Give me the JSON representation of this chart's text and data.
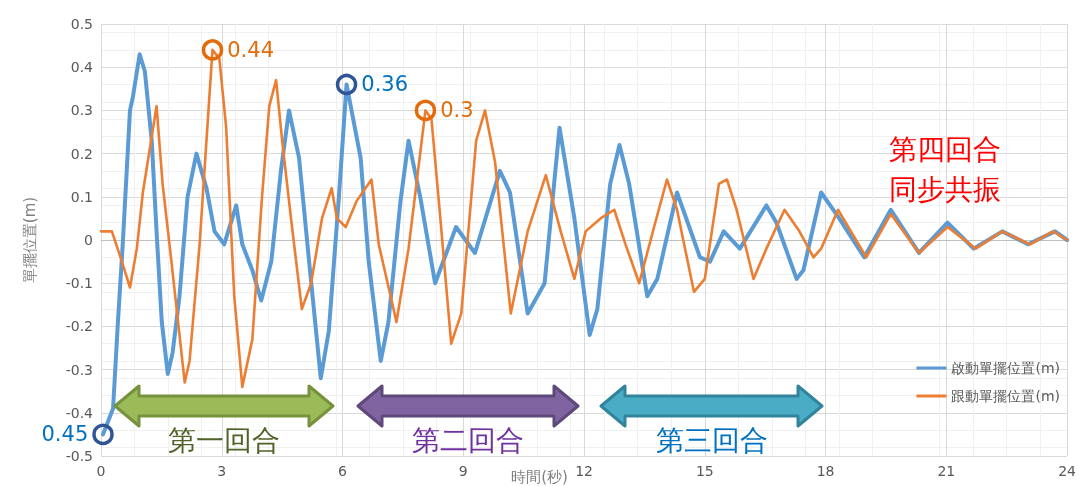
{
  "chart_data": {
    "type": "line",
    "xlabel": "時間(秒)",
    "ylabel": "單擺位置(m)",
    "xlim": [
      0,
      24
    ],
    "xticks": [
      0,
      3,
      6,
      9,
      12,
      15,
      18,
      21,
      24
    ],
    "ylim": [
      -0.5,
      0.5
    ],
    "yticks": [
      -0.5,
      -0.4,
      -0.3,
      -0.2,
      -0.1,
      0,
      0.1,
      0.2,
      0.3,
      0.4,
      0.5
    ],
    "grid": true,
    "legend": "bottom right",
    "marker": "none",
    "line_style": "solid",
    "series": [
      {
        "name": "啟動單擺位置(m)",
        "color": "#5b9bd5",
        "x": [
          0.05,
          0.3,
          0.42,
          0.54,
          0.72,
          0.79,
          0.96,
          1.09,
          1.26,
          1.38,
          1.51,
          1.66,
          1.78,
          1.95,
          2.15,
          2.37,
          2.62,
          2.82,
          3.06,
          3.36,
          3.51,
          3.76,
          3.98,
          4.23,
          4.47,
          4.67,
          4.92,
          5.17,
          5.46,
          5.66,
          5.91,
          6.1,
          6.45,
          6.65,
          6.95,
          7.14,
          7.44,
          7.64,
          7.93,
          8.3,
          8.82,
          9.29,
          9.91,
          10.16,
          10.6,
          11.02,
          11.39,
          11.76,
          12.14,
          12.33,
          12.65,
          12.88,
          13.12,
          13.57,
          13.82,
          14.31,
          14.88,
          15.13,
          15.47,
          15.87,
          16.53,
          16.78,
          17.28,
          17.45,
          17.89,
          18.34,
          18.96,
          19.62,
          20.32,
          21.03,
          21.68,
          22.39,
          23.03,
          23.7,
          24
        ],
        "values": [
          -0.45,
          -0.39,
          -0.19,
          -0.01,
          0.3,
          0.33,
          0.43,
          0.39,
          0.23,
          0.02,
          -0.19,
          -0.31,
          -0.26,
          -0.13,
          0.1,
          0.2,
          0.12,
          0.02,
          -0.01,
          0.08,
          -0.01,
          -0.07,
          -0.14,
          -0.05,
          0.16,
          0.3,
          0.19,
          -0.05,
          -0.32,
          -0.21,
          0.1,
          0.36,
          0.19,
          -0.05,
          -0.28,
          -0.19,
          0.09,
          0.23,
          0.1,
          -0.1,
          0.03,
          -0.03,
          0.16,
          0.11,
          -0.17,
          -0.1,
          0.26,
          0.05,
          -0.22,
          -0.16,
          0.13,
          0.22,
          0.13,
          -0.13,
          -0.09,
          0.11,
          -0.04,
          -0.05,
          0.02,
          -0.02,
          0.08,
          0.04,
          -0.09,
          -0.07,
          0.11,
          0.05,
          -0.04,
          0.07,
          -0.03,
          0.04,
          -0.02,
          0.02,
          -0.01,
          0.02,
          0
        ]
      },
      {
        "name": "跟動單擺位置(m)",
        "color": "#ed7d31",
        "x": [
          0,
          0.27,
          0.52,
          0.72,
          0.89,
          1.04,
          1.38,
          1.53,
          1.75,
          2.08,
          2.2,
          2.45,
          2.62,
          2.77,
          2.94,
          3.11,
          3.31,
          3.51,
          3.76,
          4,
          4.18,
          4.35,
          4.5,
          4.72,
          4.99,
          5.22,
          5.49,
          5.73,
          5.86,
          6.08,
          6.35,
          6.72,
          6.9,
          7.34,
          7.64,
          8.06,
          8.21,
          8.43,
          8.7,
          8.95,
          9.32,
          9.54,
          9.79,
          10.18,
          10.6,
          11.05,
          11.42,
          11.76,
          12.04,
          12.41,
          12.75,
          13.03,
          13.37,
          13.74,
          14.06,
          14.31,
          14.73,
          15,
          15.35,
          15.55,
          15.79,
          16.21,
          16.53,
          16.98,
          17.35,
          17.7,
          17.89,
          18.31,
          19.01,
          19.62,
          20.32,
          21.03,
          21.73,
          22.39,
          23.08,
          23.65,
          24
        ],
        "values": [
          0.02,
          0.02,
          -0.05,
          -0.11,
          -0.02,
          0.11,
          0.31,
          0.13,
          -0.05,
          -0.33,
          -0.28,
          -0.01,
          0.23,
          0.44,
          0.42,
          0.26,
          -0.13,
          -0.34,
          -0.23,
          0.1,
          0.31,
          0.37,
          0.23,
          0.05,
          -0.16,
          -0.1,
          0.05,
          0.12,
          0.05,
          0.03,
          0.09,
          0.14,
          -0.01,
          -0.19,
          -0.02,
          0.3,
          0.28,
          0.05,
          -0.24,
          -0.17,
          0.23,
          0.3,
          0.18,
          -0.17,
          0.02,
          0.15,
          0.02,
          -0.09,
          0.02,
          0.05,
          0.07,
          -0.01,
          -0.1,
          0.03,
          0.14,
          0.07,
          -0.12,
          -0.09,
          0.13,
          0.14,
          0.07,
          -0.09,
          -0.02,
          0.07,
          0.02,
          -0.04,
          -0.02,
          0.07,
          -0.04,
          0.06,
          -0.03,
          0.03,
          -0.02,
          0.02,
          -0.01,
          0.02,
          0
        ]
      }
    ],
    "annotations": [
      {
        "text": "0.45",
        "x": 0.05,
        "y": -0.45
      },
      {
        "text": "0.44",
        "x": 2.77,
        "y": 0.44
      },
      {
        "text": "0.36",
        "x": 6.1,
        "y": 0.36
      },
      {
        "text": "0.3",
        "x": 8.06,
        "y": 0.3
      },
      "第一回合",
      "第二回合",
      "第三回合",
      "第四回合",
      "同步共振"
    ]
  }
}
